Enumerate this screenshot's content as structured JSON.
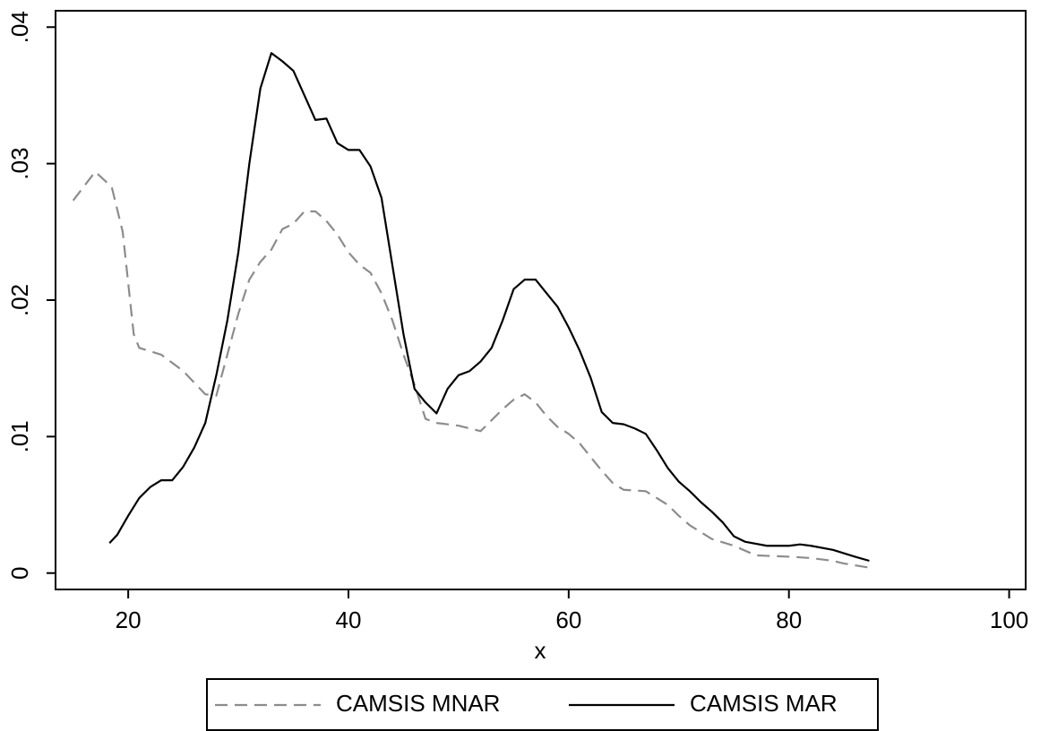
{
  "chart_data": {
    "type": "line",
    "xlabel": "x",
    "xlim": [
      13.4,
      101.5
    ],
    "xticks": [
      20,
      40,
      60,
      80,
      100
    ],
    "ylim": [
      -0.0012,
      0.0412
    ],
    "yticks": [
      0,
      {
        "value": 0.01,
        "label": ".01"
      },
      {
        "value": 0.02,
        "label": ".02"
      },
      {
        "value": 0.03,
        "label": ".03"
      },
      {
        "value": 0.04,
        "label": ".04"
      }
    ],
    "grid": false,
    "legend": "bottom",
    "series": [
      {
        "name": "CAMSIS MNAR",
        "color": "#8c8c8c",
        "dash": true,
        "x": [
          15,
          17,
          18.5,
          19.5,
          20.5,
          21,
          23,
          25,
          27,
          28,
          29,
          30,
          31,
          32,
          33,
          34,
          35,
          36,
          37,
          38,
          39,
          40,
          41,
          42,
          43,
          44,
          45,
          46,
          47,
          48,
          50,
          52,
          53,
          54,
          55,
          56,
          57,
          58,
          59,
          60,
          61,
          62,
          63,
          64,
          65,
          67,
          68,
          69,
          70,
          71,
          72,
          73,
          75,
          77,
          80,
          82,
          84,
          85,
          87.3
        ],
        "values": [
          0.0273,
          0.0294,
          0.0283,
          0.025,
          0.0175,
          0.0165,
          0.016,
          0.0148,
          0.0131,
          0.013,
          0.016,
          0.019,
          0.0215,
          0.0228,
          0.0237,
          0.0252,
          0.0256,
          0.0265,
          0.0265,
          0.0258,
          0.0248,
          0.0235,
          0.0226,
          0.022,
          0.0205,
          0.0185,
          0.016,
          0.0138,
          0.0113,
          0.011,
          0.0108,
          0.0104,
          0.0112,
          0.012,
          0.0127,
          0.0131,
          0.0125,
          0.0115,
          0.0107,
          0.0102,
          0.0095,
          0.0085,
          0.0075,
          0.0066,
          0.0061,
          0.006,
          0.0055,
          0.005,
          0.0042,
          0.0035,
          0.003,
          0.0025,
          0.002,
          0.0013,
          0.0012,
          0.0011,
          0.0009,
          0.0007,
          0.0004
        ]
      },
      {
        "name": "CAMSIS MAR",
        "color": "#000000",
        "dash": false,
        "x": [
          18.3,
          19,
          20,
          21,
          22,
          23,
          24,
          25,
          26,
          27,
          28,
          29,
          30,
          31,
          32,
          33,
          34,
          35,
          36,
          37,
          38,
          39,
          40,
          41,
          42,
          43,
          44,
          45,
          46,
          47,
          48,
          49,
          50,
          51,
          52,
          53,
          54,
          55,
          56,
          57,
          58,
          59,
          60,
          61,
          62,
          63,
          64,
          65,
          66,
          67,
          68,
          69,
          70,
          71,
          72,
          73,
          74,
          75,
          76,
          78,
          80,
          81,
          82,
          84,
          86,
          87.3
        ],
        "values": [
          0.0022,
          0.0028,
          0.0042,
          0.0055,
          0.0063,
          0.0068,
          0.0068,
          0.0078,
          0.0092,
          0.011,
          0.0145,
          0.0185,
          0.0235,
          0.03,
          0.0355,
          0.0381,
          0.0375,
          0.0368,
          0.035,
          0.0332,
          0.0333,
          0.0315,
          0.031,
          0.031,
          0.0298,
          0.0275,
          0.0225,
          0.0175,
          0.0135,
          0.0125,
          0.0117,
          0.0135,
          0.0145,
          0.0148,
          0.0155,
          0.0165,
          0.0185,
          0.0208,
          0.0215,
          0.0215,
          0.0205,
          0.0195,
          0.018,
          0.0163,
          0.0143,
          0.0118,
          0.011,
          0.0109,
          0.0106,
          0.0102,
          0.009,
          0.0077,
          0.0067,
          0.006,
          0.0052,
          0.0045,
          0.0037,
          0.0027,
          0.0023,
          0.002,
          0.002,
          0.0021,
          0.002,
          0.0017,
          0.0012,
          0.0009
        ]
      }
    ]
  }
}
